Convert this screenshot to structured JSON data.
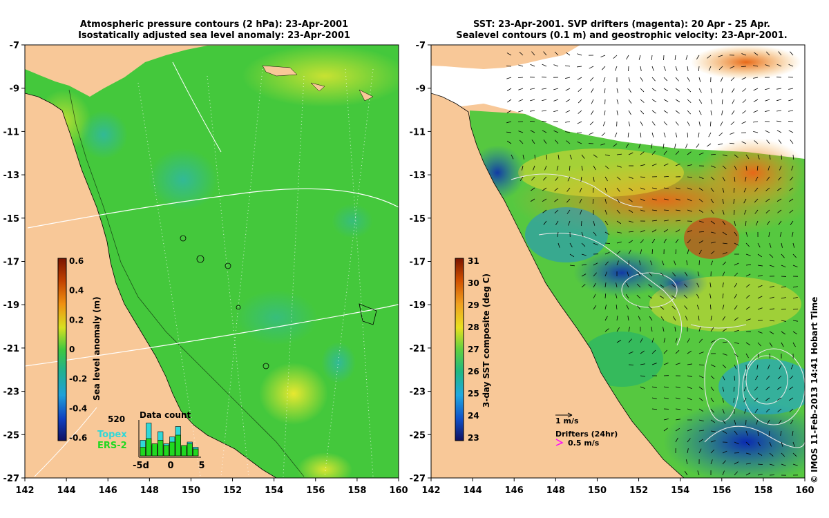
{
  "left_panel": {
    "title_line1": "Atmospheric pressure contours (2 hPa): 23-Apr-2001",
    "title_line2": "Isostatically adjusted sea level anomaly: 23-Apr-2001",
    "colorbar": {
      "label": "Sea level anomaly (m)",
      "ticks": [
        "0.6",
        "0.4",
        "0.2",
        "0",
        "-0.2",
        "-0.4",
        "-0.6"
      ]
    },
    "data_count": {
      "title": "Data count",
      "max_label": "520",
      "series": [
        "Topex",
        "ERS-2"
      ],
      "x_ticks": [
        "-5d",
        "0",
        "5"
      ],
      "topex_values": [
        0.45,
        0.95,
        0.3,
        0.7,
        0.35,
        0.55,
        0.85,
        0.25,
        0.4,
        0.25
      ],
      "ers2_values": [
        0.25,
        0.5,
        0.35,
        0.45,
        0.3,
        0.4,
        0.6,
        0.3,
        0.35,
        0.2
      ]
    }
  },
  "right_panel": {
    "title_line1": "SST: 23-Apr-2001. SVP drifters (magenta): 20 Apr - 25 Apr.",
    "title_line2": "Sealevel contours (0.1 m) and geostrophic velocity: 23-Apr-2001.",
    "colorbar": {
      "label": "3-day SST composite (deg C)",
      "ticks": [
        "31",
        "30",
        "29",
        "28",
        "27",
        "26",
        "25",
        "24",
        "23"
      ]
    },
    "velocity_scale_label": "1 m/s",
    "drifters_label": "Drifters (24hr)",
    "drifters_scale_label": "0.5 m/s"
  },
  "axes": {
    "y_ticks": [
      "-7",
      "-9",
      "-11",
      "-13",
      "-15",
      "-17",
      "-19",
      "-21",
      "-23",
      "-25",
      "-27"
    ],
    "x_ticks": [
      "142",
      "144",
      "146",
      "148",
      "150",
      "152",
      "154",
      "156",
      "158",
      "160"
    ]
  },
  "credit": "© IMOS 11-Feb-2013 14:41 Hobart Time",
  "colors": {
    "land": "#f8c898",
    "sla_green": "#3cc83c",
    "sst_warm": "#f0a020",
    "sst_cool": "#1060c0",
    "drifter": "#ff00ff"
  }
}
